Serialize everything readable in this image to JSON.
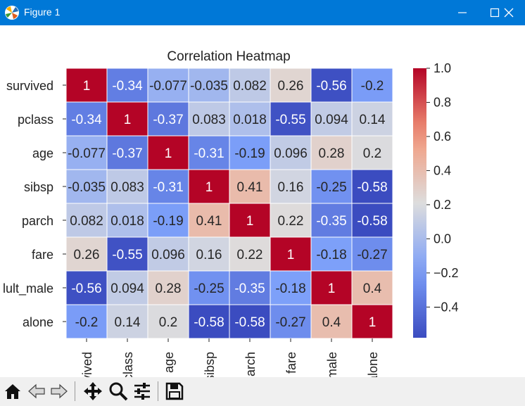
{
  "window": {
    "title": "Figure 1",
    "titlebar_color": "#0078d7",
    "controls": [
      "minimize-icon",
      "maximize-icon",
      "close-icon"
    ]
  },
  "toolbar": {
    "icons": [
      "home-icon",
      "back-arrow-icon",
      "forward-arrow-icon",
      "move-icon",
      "zoom-icon",
      "configure-subplots-icon",
      "save-icon"
    ]
  },
  "chart_data": {
    "type": "heatmap",
    "title": "Correlation Heatmap",
    "row_labels": [
      "survived",
      "pclass",
      "age",
      "sibsp",
      "parch",
      "fare",
      "adult_male",
      "alone"
    ],
    "col_labels": [
      "survived",
      "pclass",
      "age",
      "sibsp",
      "parch",
      "fare",
      "adult_male",
      "alone"
    ],
    "visible_row_labels": [
      "survived",
      "pclass",
      "age",
      "sibsp",
      "parch",
      "fare",
      "lult_male",
      "alone"
    ],
    "visible_col_labels": [
      "rvived",
      "class",
      "age",
      "sibsp",
      "arch",
      "fare",
      "male",
      "alone"
    ],
    "values": [
      [
        1,
        -0.34,
        -0.077,
        -0.035,
        0.082,
        0.26,
        -0.56,
        -0.2
      ],
      [
        -0.34,
        1,
        -0.37,
        0.083,
        0.018,
        -0.55,
        0.094,
        0.14
      ],
      [
        -0.077,
        -0.37,
        1,
        -0.31,
        -0.19,
        0.096,
        0.28,
        0.2
      ],
      [
        -0.035,
        0.083,
        -0.31,
        1,
        0.41,
        0.16,
        -0.25,
        -0.58
      ],
      [
        0.082,
        0.018,
        -0.19,
        0.41,
        1,
        0.22,
        -0.35,
        -0.58
      ],
      [
        0.26,
        -0.55,
        0.096,
        0.16,
        0.22,
        1,
        -0.18,
        -0.27
      ],
      [
        -0.56,
        0.094,
        0.28,
        -0.25,
        -0.35,
        -0.18,
        1,
        0.4
      ],
      [
        -0.2,
        0.14,
        0.2,
        -0.58,
        -0.58,
        -0.27,
        0.4,
        1
      ]
    ],
    "value_labels": [
      [
        "1",
        "-0.34",
        "-0.077",
        "-0.035",
        "0.082",
        "0.26",
        "-0.56",
        "-0.2"
      ],
      [
        "-0.34",
        "1",
        "-0.37",
        "0.083",
        "0.018",
        "-0.55",
        "0.094",
        "0.14"
      ],
      [
        "-0.077",
        "-0.37",
        "1",
        "-0.31",
        "-0.19",
        "0.096",
        "0.28",
        "0.2"
      ],
      [
        "-0.035",
        "0.083",
        "-0.31",
        "1",
        "0.41",
        "0.16",
        "-0.25",
        "-0.58"
      ],
      [
        "0.082",
        "0.018",
        "-0.19",
        "0.41",
        "1",
        "0.22",
        "-0.35",
        "-0.58"
      ],
      [
        "0.26",
        "-0.55",
        "0.096",
        "0.16",
        "0.22",
        "1",
        "-0.18",
        "-0.27"
      ],
      [
        "-0.56",
        "0.094",
        "0.28",
        "-0.25",
        "-0.35",
        "-0.18",
        "1",
        "0.4"
      ],
      [
        "-0.2",
        "0.14",
        "0.2",
        "-0.58",
        "-0.58",
        "-0.27",
        "0.4",
        "1"
      ]
    ],
    "colormap": "coolwarm",
    "colorbar": {
      "vmin": -0.58,
      "vmax": 1.0,
      "ticks": [
        1.0,
        0.8,
        0.6,
        0.4,
        0.2,
        0.0,
        -0.2,
        -0.4
      ],
      "tick_labels": [
        "1.0",
        "0.8",
        "0.6",
        "0.4",
        "0.2",
        "0.0",
        "−0.2",
        "−0.4"
      ]
    },
    "grid": true
  }
}
